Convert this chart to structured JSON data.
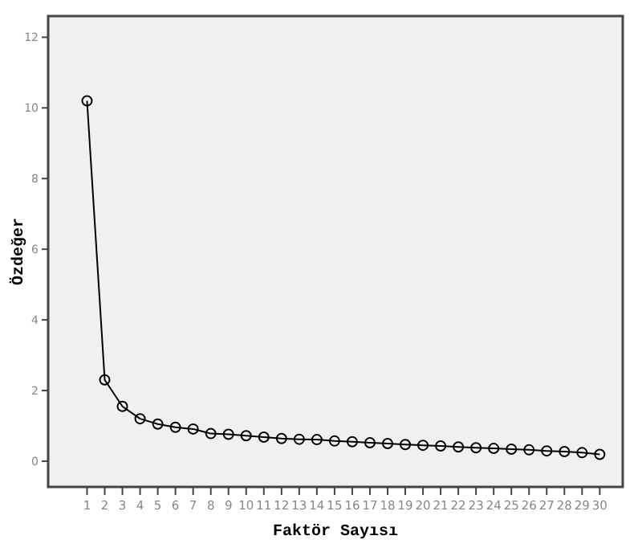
{
  "chart_data": {
    "type": "line",
    "xlabel": "Faktör Sayısı",
    "ylabel": "Özdeğer",
    "x": [
      1,
      2,
      3,
      4,
      5,
      6,
      7,
      8,
      9,
      10,
      11,
      12,
      13,
      14,
      15,
      16,
      17,
      18,
      19,
      20,
      21,
      22,
      23,
      24,
      25,
      26,
      27,
      28,
      29,
      30
    ],
    "series": [
      {
        "color": "#000000",
        "values": [
          10.2,
          2.3,
          1.55,
          1.2,
          1.05,
          0.96,
          0.91,
          0.78,
          0.76,
          0.72,
          0.68,
          0.64,
          0.62,
          0.61,
          0.57,
          0.55,
          0.52,
          0.5,
          0.47,
          0.45,
          0.43,
          0.4,
          0.38,
          0.36,
          0.34,
          0.32,
          0.29,
          0.27,
          0.24,
          0.19
        ]
      }
    ],
    "xlim": [
      -1.2,
      31.3
    ],
    "xticks": [
      1,
      2,
      3,
      4,
      5,
      6,
      7,
      8,
      9,
      10,
      11,
      12,
      13,
      14,
      15,
      16,
      17,
      18,
      19,
      20,
      21,
      22,
      23,
      24,
      25,
      26,
      27,
      28,
      29,
      30
    ],
    "ylim": [
      -0.73,
      12.6
    ],
    "yticks": [
      0,
      2,
      4,
      6,
      8,
      10,
      12
    ],
    "marker": "circle",
    "line_style": "solid"
  }
}
